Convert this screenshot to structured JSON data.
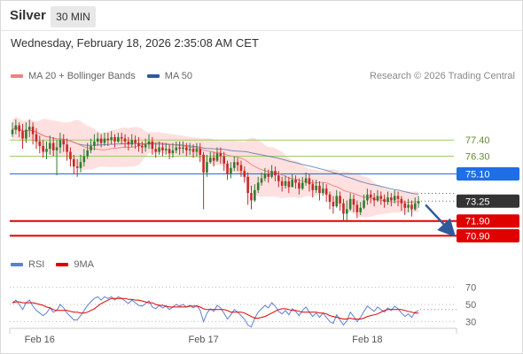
{
  "header": {
    "title": "Silver",
    "timeframe": "30 MIN"
  },
  "timestamp": "Wednesday, February 18, 2026 2:35:08 AM CET",
  "legend": {
    "bollinger": {
      "label": "MA 20 + Bollinger Bands",
      "color": "#f08080"
    },
    "ma50": {
      "label": "MA 50",
      "color": "#2e5a9c"
    }
  },
  "copyright": "Research © 2026 Trading Central",
  "rsi_legend": {
    "rsi": {
      "label": "RSI",
      "color": "#5b7fd4"
    },
    "ma9": {
      "label": "9MA",
      "color": "#e00000"
    }
  },
  "colors": {
    "up": "#2e7d32",
    "down": "#c62828",
    "band_fill": "#ffd6d6"
  },
  "chart_data": {
    "type": "candlestick",
    "y_range": [
      69.9,
      80.6
    ],
    "levels": [
      {
        "value": 77.4,
        "label": "77.40",
        "color": "#9ccc65",
        "style": "text"
      },
      {
        "value": 76.3,
        "label": "76.30",
        "color": "#9ccc65",
        "style": "text"
      },
      {
        "value": 75.1,
        "label": "75.10",
        "color": "#1e6ee6",
        "style": "badge"
      },
      {
        "value": 71.9,
        "label": "71.90",
        "color": "#e00000",
        "style": "badge"
      },
      {
        "value": 70.9,
        "label": "70.90",
        "color": "#e00000",
        "style": "badge"
      }
    ],
    "last_price": {
      "value": 73.25,
      "label": "73.25",
      "color": "#333333"
    },
    "projection": {
      "from": 73.0,
      "to": 70.9
    },
    "x_labels": [
      {
        "label": "Feb 16",
        "index": 8
      },
      {
        "label": "Feb 17",
        "index": 56
      },
      {
        "label": "Feb 18",
        "index": 104
      }
    ],
    "close": [
      78.1,
      78.4,
      78.0,
      77.5,
      78.1,
      78.3,
      77.8,
      77.3,
      77.0,
      76.6,
      76.8,
      77.2,
      76.7,
      76.9,
      77.4,
      77.1,
      76.6,
      76.1,
      75.6,
      75.5,
      75.9,
      76.3,
      76.7,
      77.0,
      77.3,
      77.5,
      77.2,
      77.5,
      77.4,
      77.6,
      77.3,
      77.6,
      77.5,
      77.3,
      77.1,
      77.4,
      77.2,
      77.0,
      76.9,
      77.1,
      77.3,
      76.8,
      76.6,
      76.9,
      76.7,
      76.8,
      76.5,
      76.7,
      76.9,
      76.8,
      76.9,
      76.7,
      76.8,
      76.6,
      76.8,
      76.4,
      75.2,
      75.9,
      76.2,
      76.0,
      76.5,
      76.3,
      75.8,
      75.1,
      75.5,
      75.9,
      75.7,
      75.3,
      74.9,
      73.8,
      73.3,
      74.0,
      74.5,
      74.8,
      75.1,
      74.9,
      75.3,
      75.0,
      74.6,
      74.3,
      74.6,
      74.2,
      74.7,
      74.5,
      74.1,
      74.5,
      74.8,
      74.4,
      74.0,
      74.3,
      73.8,
      74.1,
      73.7,
      73.2,
      72.9,
      73.6,
      73.1,
      72.4,
      72.7,
      73.4,
      73.0,
      72.5,
      72.8,
      73.3,
      73.7,
      73.5,
      73.3,
      73.6,
      73.4,
      73.2,
      73.5,
      73.3,
      73.6,
      73.4,
      73.1,
      72.8,
      73.0,
      72.7,
      73.1,
      73.25
    ],
    "high": [
      78.6,
      78.8,
      78.6,
      78.5,
      78.6,
      78.8,
      78.6,
      78.2,
      77.7,
      77.4,
      77.3,
      77.7,
      77.6,
      77.4,
      77.9,
      77.8,
      77.5,
      76.9,
      76.4,
      76.1,
      76.4,
      76.8,
      77.2,
      77.5,
      77.8,
      77.9,
      77.8,
      77.9,
      77.9,
      78.0,
      77.8,
      77.9,
      77.9,
      77.8,
      77.6,
      77.8,
      77.7,
      77.6,
      77.3,
      77.5,
      77.8,
      77.6,
      77.2,
      77.3,
      77.2,
      77.2,
      77.1,
      77.2,
      77.3,
      77.3,
      77.3,
      77.2,
      77.2,
      77.1,
      77.2,
      77.2,
      76.6,
      76.4,
      76.6,
      76.6,
      76.9,
      76.9,
      76.6,
      76.0,
      75.9,
      76.3,
      76.2,
      76.0,
      75.6,
      75.2,
      74.3,
      74.4,
      74.9,
      75.2,
      75.5,
      75.4,
      75.7,
      75.6,
      75.3,
      74.9,
      75.0,
      74.9,
      75.1,
      75.0,
      74.8,
      74.9,
      75.2,
      75.1,
      74.7,
      74.7,
      74.6,
      74.5,
      74.4,
      73.9,
      73.6,
      74.0,
      73.9,
      73.4,
      73.3,
      73.8,
      73.7,
      73.3,
      73.2,
      73.7,
      74.1,
      74.0,
      73.8,
      74.0,
      73.9,
      73.7,
      73.9,
      73.8,
      74.0,
      73.9,
      73.6,
      73.3,
      73.4,
      73.3,
      73.5,
      73.6
    ],
    "low": [
      77.6,
      77.8,
      77.6,
      76.8,
      77.2,
      77.6,
      77.1,
      76.8,
      76.5,
      76.2,
      76.1,
      76.4,
      76.3,
      75.0,
      76.5,
      76.6,
      76.0,
      75.6,
      75.1,
      74.9,
      75.2,
      75.6,
      76.1,
      76.5,
      76.7,
      77.0,
      76.9,
      77.0,
      77.0,
      77.1,
      76.9,
      77.2,
      77.1,
      76.9,
      76.7,
      76.9,
      76.8,
      76.6,
      76.5,
      76.6,
      76.8,
      76.4,
      76.2,
      76.4,
      76.3,
      76.4,
      76.1,
      76.2,
      76.5,
      76.4,
      76.5,
      76.3,
      76.4,
      76.2,
      76.3,
      75.9,
      72.7,
      74.9,
      75.8,
      75.6,
      75.9,
      75.8,
      75.3,
      74.7,
      74.8,
      75.3,
      75.3,
      74.9,
      74.5,
      73.0,
      72.7,
      73.2,
      73.8,
      74.3,
      74.6,
      74.5,
      74.8,
      74.6,
      74.2,
      73.9,
      74.1,
      73.8,
      74.2,
      74.1,
      73.7,
      74.0,
      74.3,
      73.9,
      73.5,
      73.8,
      73.3,
      73.6,
      73.2,
      72.7,
      72.4,
      72.8,
      72.6,
      71.9,
      71.9,
      72.6,
      72.5,
      72.1,
      72.3,
      72.7,
      73.0,
      73.1,
      72.9,
      73.2,
      73.0,
      72.8,
      73.0,
      72.9,
      73.1,
      72.9,
      72.6,
      72.3,
      72.5,
      72.2,
      72.6,
      72.8
    ],
    "rsi_axis": {
      "ticks": [
        70,
        50,
        30
      ],
      "range": [
        15,
        85
      ]
    },
    "rsi": [
      52,
      55,
      50,
      44,
      52,
      55,
      48,
      43,
      40,
      37,
      40,
      46,
      41,
      43,
      50,
      46,
      40,
      36,
      32,
      32,
      37,
      43,
      49,
      53,
      57,
      59,
      55,
      59,
      57,
      59,
      55,
      59,
      57,
      54,
      51,
      55,
      52,
      49,
      48,
      51,
      54,
      47,
      45,
      49,
      46,
      48,
      44,
      47,
      50,
      48,
      50,
      47,
      49,
      46,
      49,
      43,
      30,
      40,
      45,
      42,
      49,
      46,
      40,
      33,
      38,
      44,
      41,
      37,
      33,
      26,
      24,
      34,
      41,
      45,
      49,
      46,
      52,
      48,
      42,
      39,
      43,
      38,
      45,
      42,
      37,
      43,
      47,
      41,
      36,
      40,
      35,
      40,
      35,
      30,
      28,
      38,
      32,
      26,
      31,
      41,
      36,
      30,
      35,
      42,
      48,
      45,
      42,
      47,
      44,
      41,
      46,
      43,
      48,
      45,
      40,
      36,
      39,
      35,
      41,
      43
    ],
    "ma9": [
      52,
      53,
      53,
      52,
      52,
      52,
      52,
      51,
      50,
      49,
      47,
      46,
      44,
      43,
      43,
      43,
      43,
      42,
      41,
      41,
      40,
      40,
      41,
      43,
      45,
      48,
      51,
      53,
      55,
      57,
      57,
      57,
      57,
      57,
      56,
      56,
      55,
      55,
      54,
      53,
      52,
      52,
      50,
      49,
      49,
      48,
      47,
      47,
      47,
      47,
      47,
      47,
      48,
      48,
      48,
      47,
      45,
      44,
      44,
      44,
      44,
      44,
      44,
      43,
      41,
      41,
      41,
      41,
      40,
      38,
      36,
      34,
      34,
      35,
      36,
      38,
      40,
      42,
      44,
      45,
      45,
      44,
      43,
      43,
      42,
      41,
      41,
      41,
      41,
      41,
      40,
      40,
      39,
      37,
      36,
      35,
      34,
      33,
      33,
      34,
      33,
      33,
      33,
      34,
      36,
      37,
      38,
      39,
      41,
      43,
      44,
      44,
      44,
      44,
      44,
      43,
      42,
      41,
      40,
      40
    ]
  }
}
